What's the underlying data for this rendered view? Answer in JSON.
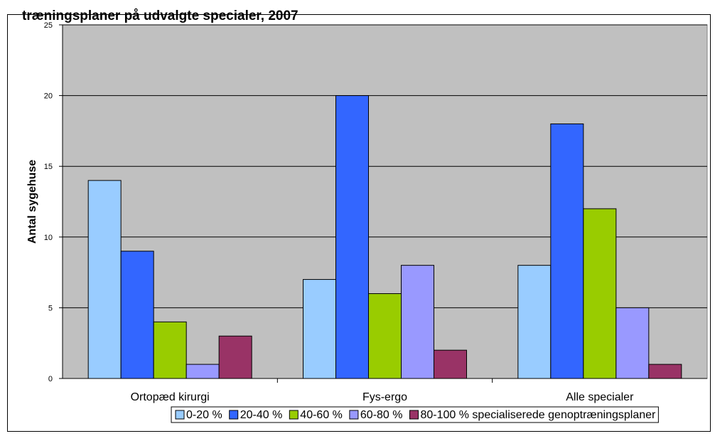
{
  "chart_data": {
    "type": "bar",
    "title": "træningsplaner på udvalgte specialer, 2007",
    "ylabel": "Antal sygehuse",
    "ylim": [
      0,
      25
    ],
    "yticks": [
      0,
      5,
      10,
      15,
      20,
      25
    ],
    "categories": [
      "Ortopæd kirurgi",
      "Fys-ergo",
      "Alle specialer"
    ],
    "series": [
      {
        "name": "0-20 %",
        "color": "#99ccff",
        "values": [
          14,
          7,
          8
        ]
      },
      {
        "name": "20-40 %",
        "color": "#3366ff",
        "values": [
          9,
          20,
          18
        ]
      },
      {
        "name": "40-60 %",
        "color": "#99cc00",
        "values": [
          4,
          6,
          12
        ]
      },
      {
        "name": "60-80 %",
        "color": "#9999ff",
        "values": [
          1,
          8,
          5
        ]
      },
      {
        "name": "80-100 % specialiserede genoptræningsplaner",
        "color": "#993366",
        "values": [
          3,
          2,
          1
        ]
      }
    ],
    "grid": true,
    "plot_background": "#c0c0c0",
    "legend_position": "bottom"
  }
}
